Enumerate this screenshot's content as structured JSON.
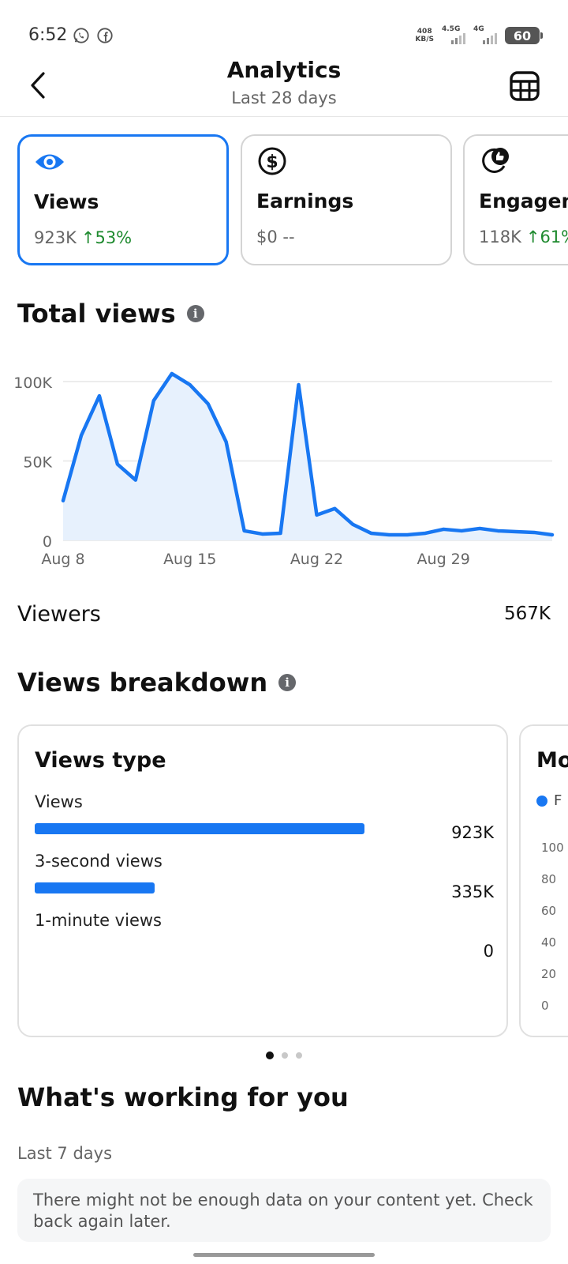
{
  "status_bar": {
    "time": "6:52",
    "icons": [
      "whatsapp-icon",
      "facebook-icon"
    ],
    "speed_value": "408",
    "speed_unit": "KB/S",
    "net1": "4.5G",
    "net2": "4G",
    "battery": "60"
  },
  "header": {
    "title": "Analytics",
    "subtitle": "Last 28 days",
    "back_icon": "chevron-left-icon",
    "table_icon": "table-icon"
  },
  "metrics": [
    {
      "label": "Views",
      "value": "923K",
      "change": "↑53%",
      "icon": "eye-icon",
      "selected": true
    },
    {
      "label": "Earnings",
      "value": "$0 --",
      "change": "",
      "icon": "dollar-icon",
      "selected": false
    },
    {
      "label": "Engagement",
      "value": "118K",
      "change": "↑61%",
      "icon": "thumbs-up-icon",
      "selected": false
    }
  ],
  "total_views": {
    "title": "Total views"
  },
  "chart_data": {
    "type": "area",
    "title": "Total views",
    "x": [
      "Aug 8",
      "Aug 9",
      "Aug 10",
      "Aug 11",
      "Aug 12",
      "Aug 13",
      "Aug 14",
      "Aug 15",
      "Aug 16",
      "Aug 17",
      "Aug 18",
      "Aug 19",
      "Aug 20",
      "Aug 21",
      "Aug 22",
      "Aug 23",
      "Aug 24",
      "Aug 25",
      "Aug 26",
      "Aug 27",
      "Aug 28",
      "Aug 29",
      "Aug 30",
      "Aug 31",
      "Sep 1",
      "Sep 2",
      "Sep 3",
      "Sep 4"
    ],
    "series": [
      {
        "values": [
          25000,
          66000,
          91000,
          48000,
          38000,
          88000,
          105000,
          98000,
          86000,
          62000,
          6000,
          4000,
          4500,
          98000,
          16000,
          20000,
          10000,
          4500,
          3500,
          3500,
          4500,
          7000,
          6000,
          7500,
          6000,
          5500,
          5000,
          3500
        ]
      }
    ],
    "x_tick_labels": [
      "Aug 8",
      "Aug 15",
      "Aug 22",
      "Aug 29"
    ],
    "y_tick_labels": [
      "0",
      "50K",
      "100K"
    ],
    "ylim": [
      0,
      100000
    ],
    "grid": true,
    "color": "#1877f2",
    "fill_color": "#e7f1fd"
  },
  "viewers": {
    "label": "Viewers",
    "value": "567K"
  },
  "views_breakdown": {
    "title": "Views breakdown",
    "card_title": "Views type",
    "rows": [
      {
        "label": "Views",
        "value": "923K",
        "fraction": 1.0
      },
      {
        "label": "3-second views",
        "value": "335K",
        "fraction": 0.363
      },
      {
        "label": "1-minute views",
        "value": "0",
        "fraction": 0
      }
    ],
    "next_card_title": "Mo",
    "next_card_legend": "F",
    "next_card_ticks": [
      "100",
      "80",
      "60",
      "40",
      "20",
      "0"
    ],
    "page_count": 3,
    "active_page": 0
  },
  "whats_working": {
    "title": "What's working for you",
    "subtitle": "Last 7 days",
    "notice": "There might not be enough data on your content yet. Check back again later."
  }
}
